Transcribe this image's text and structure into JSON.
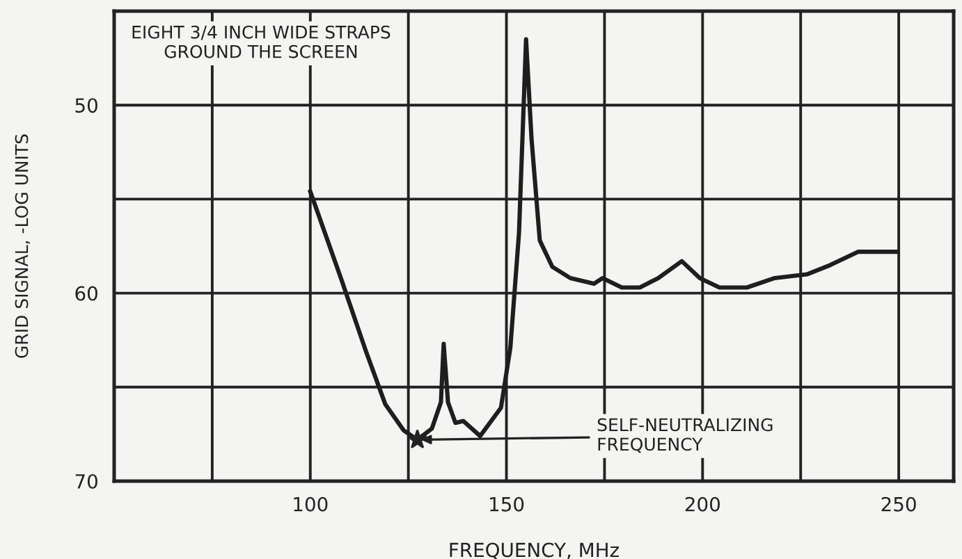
{
  "chart_data": {
    "type": "line",
    "xlabel": "FREQUENCY, MHz",
    "ylabel": "GRID SIGNAL, -LOG UNITS",
    "x": [
      100,
      107.8,
      114.2,
      119.1,
      123.8,
      127.3,
      131,
      133.3,
      134,
      135.1,
      137,
      139,
      143.3,
      148.6,
      151,
      153.2,
      155,
      156.4,
      158.5,
      161.7,
      166.3,
      172.3,
      174.5,
      179.4,
      184,
      188.7,
      194.7,
      199.3,
      204.3,
      211.3,
      218.4,
      226.6,
      232.6,
      239.7,
      249.6
    ],
    "series": [
      {
        "color": "#1e1e1e",
        "values": [
          54.6,
          59.2,
          63.1,
          65.9,
          67.3,
          67.8,
          67.2,
          65.8,
          62.7,
          65.8,
          66.9,
          66.8,
          67.6,
          66.1,
          62.9,
          56.8,
          46.5,
          51.8,
          57.2,
          58.6,
          59.2,
          59.5,
          59.2,
          59.7,
          59.7,
          59.2,
          58.3,
          59.2,
          59.7,
          59.7,
          59.2,
          59.0,
          58.5,
          57.8,
          57.8
        ]
      }
    ],
    "xlim": [
      50,
      264
    ],
    "ylim": [
      70,
      45
    ],
    "xticks": [
      {
        "value": 75,
        "label": null
      },
      100,
      {
        "value": 125,
        "label": null
      },
      150,
      {
        "value": 175,
        "label": null
      },
      200,
      {
        "value": 225,
        "label": null
      },
      250
    ],
    "yticks": [
      50,
      {
        "value": 55,
        "label": null
      },
      60,
      {
        "value": 65,
        "label": null
      },
      70
    ],
    "grid": true,
    "marker": "none",
    "line_style": "solid",
    "annotations": [
      "EIGHT 3/4 INCH WIDE STRAPS\nGROUND THE SCREEN",
      {
        "text": "SELF-NEUTRALIZING\nFREQUENCY",
        "x": 127.3,
        "y": 67.8
      }
    ]
  }
}
